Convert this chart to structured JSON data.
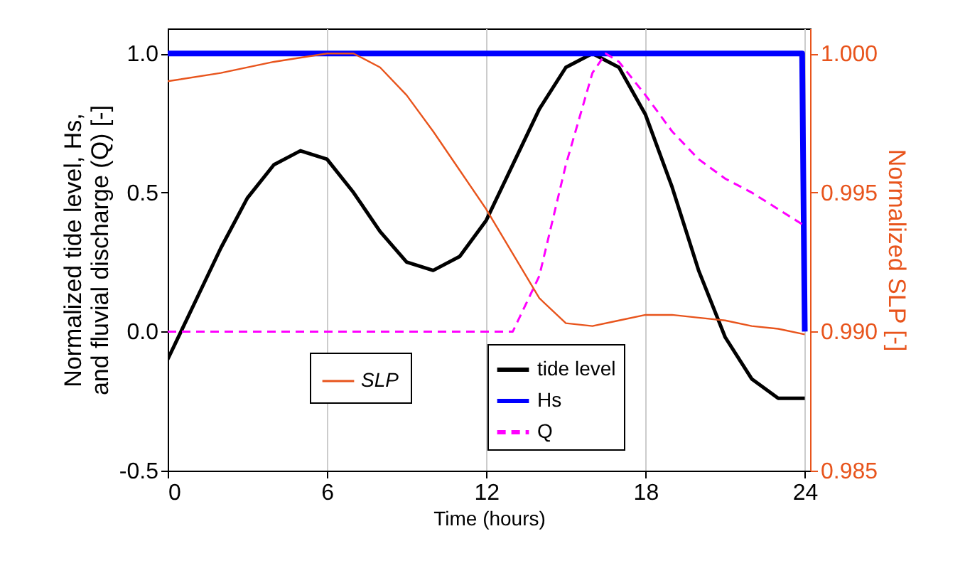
{
  "chart_data": {
    "type": "line",
    "xlabel": "Time (hours)",
    "ylabel": "Normalized tide level, Hs,\nand fluvial discharge (Q) [-]",
    "y2label": "Normalized SLP [-]",
    "xlim": [
      0,
      24.2
    ],
    "xticks": [
      0,
      6,
      12,
      18,
      24
    ],
    "ylim": [
      -0.5,
      1.09
    ],
    "yticks": [
      {
        "value": -0.5,
        "label": "-0.5"
      },
      {
        "value": 0,
        "label": "0.0"
      },
      {
        "value": 0.5,
        "label": "0.5"
      },
      {
        "value": 1,
        "label": "1.0"
      }
    ],
    "y2lim": [
      0.985,
      1.0009
    ],
    "y2ticks": [
      {
        "value": 0.985,
        "label": "0.985"
      },
      {
        "value": 0.99,
        "label": "0.990"
      },
      {
        "value": 0.995,
        "label": "0.995"
      },
      {
        "value": 1.0,
        "label": "1.000"
      }
    ],
    "grid": "x",
    "legend": "bottom",
    "marker": "none",
    "series": [
      {
        "name": "tide level",
        "color": "#000000",
        "line_style": "solid",
        "x": [
          0,
          1,
          2,
          3,
          4,
          5,
          6,
          7,
          8,
          9,
          10,
          11,
          12,
          13,
          14,
          15,
          16,
          17,
          18,
          19,
          20,
          21,
          22,
          23,
          24
        ],
        "values": [
          -0.1,
          0.1,
          0.3,
          0.48,
          0.6,
          0.65,
          0.62,
          0.5,
          0.36,
          0.25,
          0.22,
          0.27,
          0.4,
          0.6,
          0.8,
          0.95,
          1.0,
          0.95,
          0.78,
          0.52,
          0.22,
          -0.02,
          -0.17,
          -0.24,
          -0.24
        ]
      },
      {
        "name": "Hs",
        "color": "#0000ff",
        "line_style": "solid",
        "x": [
          0,
          23.9,
          24
        ],
        "values": [
          1,
          1,
          0
        ]
      },
      {
        "name": "Q",
        "color": "#ff00ff",
        "line_style": "dashed",
        "x": [
          0,
          13,
          14,
          15,
          16,
          16.5,
          17,
          18,
          19,
          20,
          21,
          22,
          23,
          24
        ],
        "values": [
          0,
          0,
          0.2,
          0.6,
          0.93,
          1.0,
          0.97,
          0.85,
          0.72,
          0.62,
          0.55,
          0.5,
          0.44,
          0.38
        ]
      },
      {
        "name": "SLP",
        "color": "#e8541c",
        "line_style": "solid",
        "axis": "y2",
        "x": [
          0,
          2,
          4,
          6,
          7,
          8,
          9,
          10,
          11,
          12,
          13,
          14,
          15,
          16,
          17,
          18,
          19,
          20,
          21,
          22,
          23,
          24
        ],
        "values": [
          0.999,
          0.9993,
          0.9997,
          1.0,
          1.0,
          0.9995,
          0.9985,
          0.9972,
          0.9958,
          0.9944,
          0.9928,
          0.9912,
          0.9903,
          0.9902,
          0.9904,
          0.9906,
          0.9906,
          0.9905,
          0.9904,
          0.9902,
          0.9901,
          0.9899
        ]
      }
    ]
  }
}
